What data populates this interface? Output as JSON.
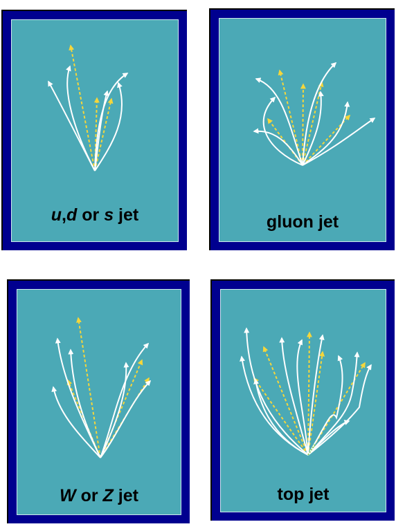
{
  "colors": {
    "outer_frame": "#00008f",
    "panel": "#4ba9b6",
    "track": "#ffffff",
    "parton": "#f5d63b"
  },
  "panels": [
    {
      "id": "light",
      "parts": [
        {
          "text": "u",
          "italic": true
        },
        {
          "text": ",",
          "italic": false
        },
        {
          "text": "d",
          "italic": true
        },
        {
          "text": " or ",
          "italic": false
        },
        {
          "text": "s",
          "italic": true
        },
        {
          "text": " jet",
          "italic": false
        }
      ]
    },
    {
      "id": "gluon",
      "parts": [
        {
          "text": "gluon jet",
          "italic": false
        }
      ]
    },
    {
      "id": "wz",
      "parts": [
        {
          "text": "W",
          "italic": true
        },
        {
          "text": " or ",
          "italic": false
        },
        {
          "text": "Z",
          "italic": true
        },
        {
          "text": " jet",
          "italic": false
        }
      ]
    },
    {
      "id": "top",
      "parts": [
        {
          "text": "top jet",
          "italic": false
        }
      ]
    }
  ]
}
